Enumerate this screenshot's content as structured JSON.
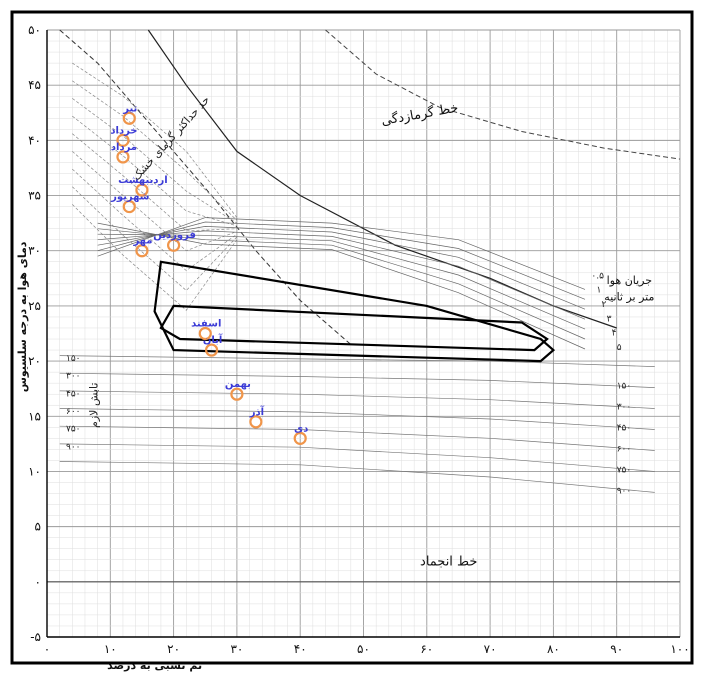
{
  "chart_data": {
    "type": "scatter",
    "title": "",
    "xlabel": "نم نسبی به درصد",
    "ylabel": "دمای هوا به درجه سلسیوس",
    "xlim": [
      0,
      100
    ],
    "ylim": [
      -5,
      50
    ],
    "x_ticks": [
      "۰",
      "۱۰",
      "۲۰",
      "۳۰",
      "۴۰",
      "۵۰",
      "۶۰",
      "۷۰",
      "۸۰",
      "۹۰",
      "۱۰۰"
    ],
    "y_ticks": [
      "-۵",
      "۰",
      "۵",
      "۱۰",
      "۱۵",
      "۲۰",
      "۲۵",
      "۳۰",
      "۳۵",
      "۴۰",
      "۴۵",
      "۵۰"
    ],
    "grid": true,
    "annotations": {
      "heat_stroke": "خط گرمازدگی",
      "freezing": "خط انجماد",
      "wind": "جریان هوا",
      "wind_unit": "متر بر ثانیه",
      "max_dry": "حد حداکثر گرمای خشک",
      "left_radiation": "تابش لازم"
    },
    "wind_labels_right": [
      "۰.۵",
      "۱",
      "۲",
      "۳",
      "۴",
      "۵"
    ],
    "radiation_labels_left": [
      "۱۵۰",
      "۳۰۰",
      "۴۵۰",
      "۶۰۰",
      "۷۵۰",
      "۹۰۰"
    ],
    "radiation_labels_right": [
      "۱۵۰",
      "۳۰۰",
      "۴۵۰",
      "۶۰۰",
      "۷۵۰",
      "۹۰۰"
    ],
    "series": [
      {
        "name": "",
        "color": "#f0954a",
        "label_color": "#3b3bd6",
        "points": [
          {
            "label": "تیر",
            "x": 13,
            "y": 42
          },
          {
            "label": "خرداد",
            "x": 12,
            "y": 40
          },
          {
            "label": "مرداد",
            "x": 12,
            "y": 38.5
          },
          {
            "label": "اردیبهشت",
            "x": 15,
            "y": 35.5
          },
          {
            "label": "شهریور",
            "x": 13,
            "y": 34
          },
          {
            "label": "فروردین",
            "x": 20,
            "y": 30.5
          },
          {
            "label": "مهر",
            "x": 15,
            "y": 30
          },
          {
            "label": "اسفند",
            "x": 25,
            "y": 22.5
          },
          {
            "label": "آبان",
            "x": 26,
            "y": 21
          },
          {
            "label": "بهمن",
            "x": 30,
            "y": 17
          },
          {
            "label": "آذر",
            "x": 33,
            "y": 14.5
          },
          {
            "label": "دی",
            "x": 40,
            "y": 13
          }
        ]
      }
    ],
    "comfort_zone": {
      "outer": [
        [
          18,
          29
        ],
        [
          60,
          25
        ],
        [
          78,
          22
        ],
        [
          80,
          21
        ],
        [
          78,
          20
        ],
        [
          20,
          21
        ],
        [
          17,
          24.5
        ]
      ],
      "inner": [
        [
          20,
          25
        ],
        [
          75,
          23.5
        ],
        [
          79,
          22
        ],
        [
          77,
          21
        ],
        [
          21,
          22
        ],
        [
          18,
          23
        ]
      ]
    }
  }
}
